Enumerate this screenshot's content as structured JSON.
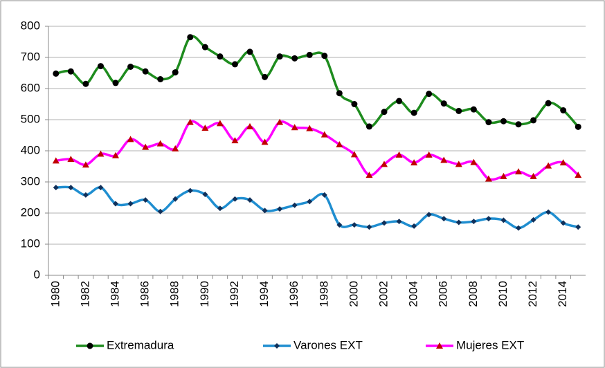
{
  "chart_data": {
    "type": "line",
    "categories": [
      "1980",
      null,
      "1982",
      null,
      "1984",
      null,
      "1986",
      null,
      "1988",
      null,
      "1990",
      null,
      "1992",
      null,
      "1994",
      null,
      "1996",
      null,
      "1998",
      null,
      "2000",
      null,
      "2002",
      null,
      "2004",
      null,
      "2006",
      null,
      "2008",
      null,
      "2010",
      null,
      "2012",
      null,
      "2014",
      null
    ],
    "series": [
      {
        "name": "Extremadura",
        "color": "#1e8c1e",
        "marker": "circle",
        "marker_color": "#000000",
        "values": [
          648,
          655,
          615,
          672,
          618,
          670,
          655,
          630,
          652,
          765,
          733,
          703,
          678,
          718,
          637,
          703,
          697,
          708,
          705,
          585,
          550,
          478,
          525,
          560,
          522,
          583,
          552,
          528,
          533,
          492,
          495,
          485,
          498,
          553,
          530,
          477
        ]
      },
      {
        "name": "Varones EXT",
        "color": "#1f8ed0",
        "marker": "diamond",
        "marker_color": "#10305a",
        "values": [
          282,
          282,
          258,
          282,
          230,
          230,
          242,
          205,
          245,
          272,
          260,
          215,
          245,
          242,
          208,
          213,
          225,
          237,
          258,
          162,
          162,
          155,
          168,
          173,
          158,
          195,
          182,
          170,
          173,
          182,
          177,
          152,
          178,
          203,
          168,
          155
        ]
      },
      {
        "name": "Mujeres EXT",
        "color": "#ff00ff",
        "marker": "triangle",
        "marker_color": "#c00000",
        "values": [
          368,
          373,
          355,
          390,
          385,
          437,
          412,
          423,
          407,
          492,
          473,
          488,
          433,
          478,
          428,
          492,
          475,
          472,
          452,
          420,
          388,
          322,
          357,
          387,
          362,
          387,
          370,
          357,
          363,
          310,
          318,
          333,
          318,
          352,
          362,
          322
        ]
      }
    ],
    "ylim": [
      0,
      800
    ],
    "yticks": [
      0,
      100,
      200,
      300,
      400,
      500,
      600,
      700,
      800
    ],
    "grid": true,
    "legend": "bottom"
  }
}
